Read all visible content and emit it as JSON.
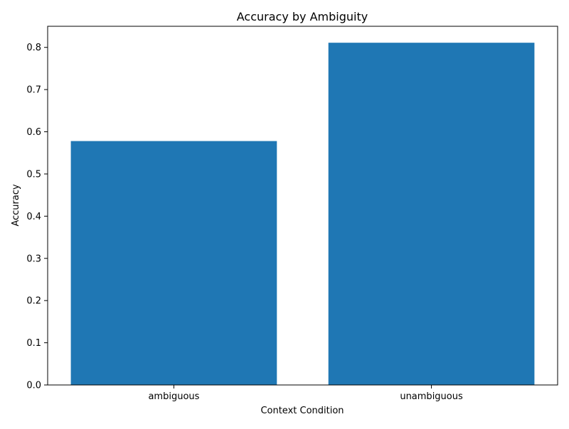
{
  "chart_data": {
    "type": "bar",
    "title": "Accuracy by Ambiguity",
    "xlabel": "Context Condition",
    "ylabel": "Accuracy",
    "categories": [
      "ambiguous",
      "unambiguous"
    ],
    "values": [
      0.578,
      0.811
    ],
    "ylim": [
      0,
      0.85
    ],
    "yticks": [
      0.0,
      0.1,
      0.2,
      0.3,
      0.4,
      0.5,
      0.6,
      0.7,
      0.8
    ],
    "ytick_labels": [
      "0.0",
      "0.1",
      "0.2",
      "0.3",
      "0.4",
      "0.5",
      "0.6",
      "0.7",
      "0.8"
    ],
    "bar_color": "#1f77b4",
    "grid": false,
    "legend": "none"
  }
}
